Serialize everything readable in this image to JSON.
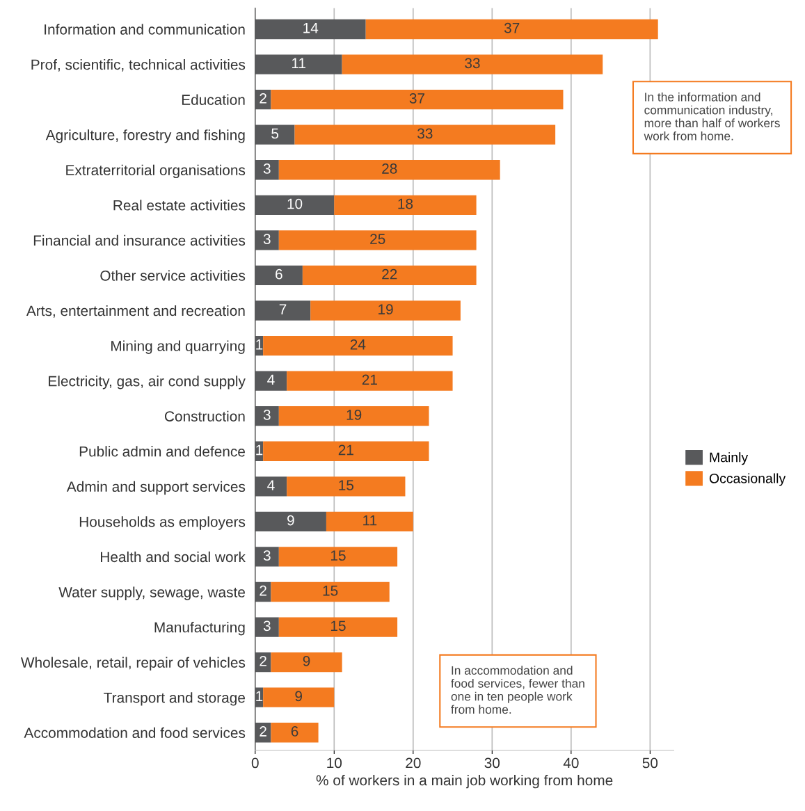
{
  "chart_data": {
    "type": "bar",
    "orientation": "horizontal",
    "stacked": true,
    "categories": [
      "Information and communication",
      "Prof, scientific, technical activities",
      "Education",
      "Agriculture, forestry and fishing",
      "Extraterritorial organisations",
      "Real estate activities",
      "Financial and insurance activities",
      "Other service activities",
      "Arts, entertainment and recreation",
      "Mining and quarrying",
      "Electricity, gas, air cond supply",
      "Construction",
      "Public admin and defence",
      "Admin and support services",
      "Households as employers",
      "Health and social work",
      "Water supply, sewage, waste",
      "Manufacturing",
      "Wholesale, retail, repair of vehicles",
      "Transport and storage",
      "Accommodation and food services"
    ],
    "series": [
      {
        "name": "Mainly",
        "color": "#58595b",
        "values": [
          14,
          11,
          2,
          5,
          3,
          10,
          3,
          6,
          7,
          1,
          4,
          3,
          1,
          4,
          9,
          3,
          2,
          3,
          2,
          1,
          2
        ]
      },
      {
        "name": "Occasionally",
        "color": "#f47b20",
        "values": [
          37,
          33,
          37,
          33,
          28,
          18,
          25,
          22,
          19,
          24,
          21,
          19,
          21,
          15,
          11,
          15,
          15,
          15,
          9,
          9,
          6
        ]
      }
    ],
    "data_labels": true,
    "xlabel": "% of workers in a main job working from home",
    "xlim": [
      0,
      53
    ],
    "xticks": [
      0,
      10,
      20,
      30,
      40,
      50
    ],
    "grid": "x",
    "legend": "right",
    "annotations": [
      "In the information and communication industry, more than half of workers work from home.",
      "In accommodation and food services, fewer than one in ten people work from home."
    ]
  }
}
